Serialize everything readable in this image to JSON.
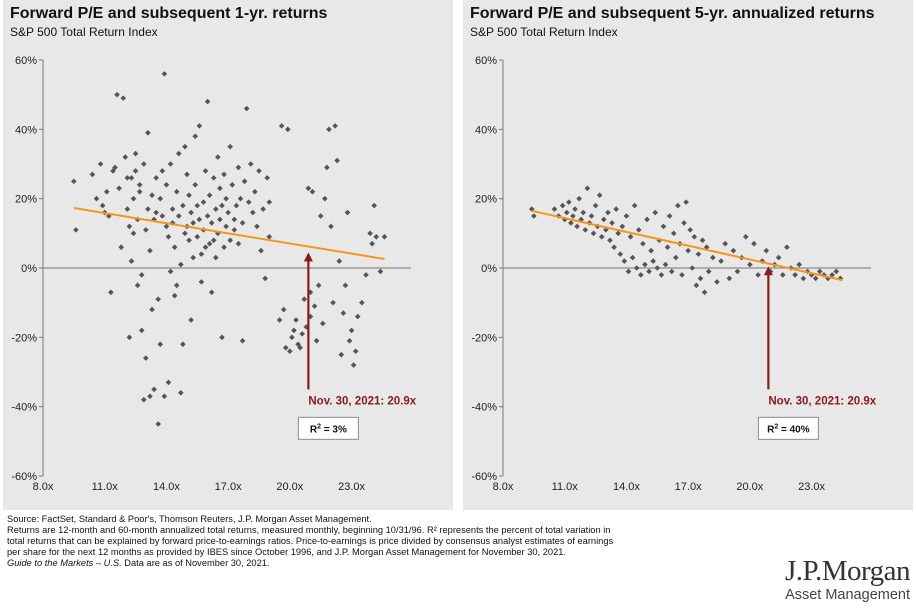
{
  "colors": {
    "panel_bg": "#e8e8e8",
    "points": "#555555",
    "trend": "#f7941d",
    "arrow": "#8b1a1a",
    "zero_line": "#8c8c8c"
  },
  "chart_data": [
    {
      "type": "scatter",
      "title": "Forward P/E and subsequent 1-yr. returns",
      "subtitle": "S&P 500 Total Return Index",
      "xlabel": "",
      "ylabel": "",
      "xlim": [
        8,
        25.5
      ],
      "ylim": [
        -60,
        60
      ],
      "xticks": [
        8,
        11,
        14,
        17,
        20,
        23
      ],
      "xtick_labels": [
        "8.0x",
        "11.0x",
        "14.0x",
        "17.0x",
        "20.0x",
        "23.0x"
      ],
      "yticks": [
        -60,
        -40,
        -20,
        0,
        20,
        40,
        60
      ],
      "ytick_labels": [
        "-60%",
        "-40%",
        "-20%",
        "0%",
        "20%",
        "40%",
        "60%"
      ],
      "grid": false,
      "trendline": {
        "x": [
          9.5,
          24.6
        ],
        "y": [
          17.3,
          2.6
        ]
      },
      "annotation": {
        "label": "Nov. 30, 2021: 20.9x",
        "x": 20.9,
        "y_from": -35,
        "y_to": 4.5
      },
      "r_squared_label": "R",
      "r_squared_sup": "2",
      "r_squared_value": " = 3%",
      "points": [
        [
          9.5,
          25
        ],
        [
          9.6,
          11
        ],
        [
          10.4,
          27
        ],
        [
          10.6,
          20
        ],
        [
          10.8,
          30
        ],
        [
          10.9,
          18
        ],
        [
          11.0,
          16
        ],
        [
          11.1,
          22
        ],
        [
          11.2,
          15
        ],
        [
          11.3,
          -7
        ],
        [
          11.4,
          28
        ],
        [
          11.5,
          29
        ],
        [
          11.6,
          50
        ],
        [
          11.7,
          23
        ],
        [
          11.8,
          6
        ],
        [
          11.9,
          49
        ],
        [
          12.0,
          32
        ],
        [
          12.1,
          17
        ],
        [
          12.1,
          26
        ],
        [
          12.2,
          12
        ],
        [
          12.2,
          -20
        ],
        [
          12.3,
          2
        ],
        [
          12.3,
          26
        ],
        [
          12.4,
          10
        ],
        [
          12.4,
          20
        ],
        [
          12.5,
          28
        ],
        [
          12.5,
          33
        ],
        [
          12.6,
          14
        ],
        [
          12.6,
          -5
        ],
        [
          12.7,
          24
        ],
        [
          12.7,
          22
        ],
        [
          12.8,
          -18
        ],
        [
          12.8,
          -2
        ],
        [
          12.9,
          30
        ],
        [
          12.9,
          -38
        ],
        [
          13.0,
          11
        ],
        [
          13.0,
          -26
        ],
        [
          13.1,
          17
        ],
        [
          13.1,
          39
        ],
        [
          13.2,
          -37
        ],
        [
          13.2,
          5
        ],
        [
          13.3,
          21
        ],
        [
          13.3,
          -12
        ],
        [
          13.4,
          14
        ],
        [
          13.4,
          -35
        ],
        [
          13.5,
          26
        ],
        [
          13.5,
          16
        ],
        [
          13.6,
          -9
        ],
        [
          13.6,
          -45
        ],
        [
          13.7,
          20
        ],
        [
          13.7,
          -22
        ],
        [
          13.8,
          15
        ],
        [
          13.8,
          28
        ],
        [
          13.9,
          56
        ],
        [
          13.9,
          -37
        ],
        [
          14.0,
          24
        ],
        [
          14.0,
          12
        ],
        [
          14.1,
          -33
        ],
        [
          14.1,
          9
        ],
        [
          14.2,
          30
        ],
        [
          14.2,
          -1
        ],
        [
          14.3,
          13
        ],
        [
          14.3,
          17
        ],
        [
          14.4,
          6
        ],
        [
          14.4,
          -8
        ],
        [
          14.5,
          22
        ],
        [
          14.5,
          -5
        ],
        [
          14.6,
          33
        ],
        [
          14.6,
          15
        ],
        [
          14.7,
          -36
        ],
        [
          14.7,
          1
        ],
        [
          14.8,
          18
        ],
        [
          14.8,
          -22
        ],
        [
          14.9,
          10
        ],
        [
          14.9,
          35
        ],
        [
          15.0,
          12
        ],
        [
          15.0,
          27
        ],
        [
          15.1,
          8
        ],
        [
          15.1,
          21
        ],
        [
          15.2,
          16
        ],
        [
          15.2,
          -15
        ],
        [
          15.3,
          3
        ],
        [
          15.3,
          13
        ],
        [
          15.4,
          24
        ],
        [
          15.4,
          38
        ],
        [
          15.5,
          9
        ],
        [
          15.5,
          18
        ],
        [
          15.6,
          41
        ],
        [
          15.6,
          14
        ],
        [
          15.7,
          4
        ],
        [
          15.7,
          -4
        ],
        [
          15.8,
          19
        ],
        [
          15.8,
          11
        ],
        [
          15.9,
          28
        ],
        [
          15.9,
          6
        ],
        [
          16.0,
          15
        ],
        [
          16.0,
          48
        ],
        [
          16.1,
          7
        ],
        [
          16.1,
          21
        ],
        [
          16.2,
          13
        ],
        [
          16.2,
          -7
        ],
        [
          16.3,
          26
        ],
        [
          16.3,
          8
        ],
        [
          16.4,
          17
        ],
        [
          16.4,
          3
        ],
        [
          16.5,
          32
        ],
        [
          16.5,
          10
        ],
        [
          16.6,
          14
        ],
        [
          16.6,
          23
        ],
        [
          16.7,
          18
        ],
        [
          16.7,
          -20
        ],
        [
          16.8,
          6
        ],
        [
          16.8,
          27
        ],
        [
          16.9,
          12
        ],
        [
          16.9,
          20
        ],
        [
          17.0,
          16
        ],
        [
          17.1,
          8
        ],
        [
          17.1,
          35
        ],
        [
          17.2,
          24
        ],
        [
          17.3,
          11
        ],
        [
          17.3,
          14
        ],
        [
          17.4,
          18
        ],
        [
          17.5,
          7
        ],
        [
          17.5,
          29
        ],
        [
          17.6,
          20
        ],
        [
          17.7,
          13
        ],
        [
          17.7,
          -21
        ],
        [
          17.8,
          25
        ],
        [
          17.9,
          46
        ],
        [
          18.0,
          19
        ],
        [
          18.1,
          30
        ],
        [
          18.2,
          16
        ],
        [
          18.3,
          22
        ],
        [
          18.4,
          12
        ],
        [
          18.5,
          28
        ],
        [
          18.6,
          5
        ],
        [
          18.7,
          17
        ],
        [
          18.8,
          -3
        ],
        [
          18.9,
          26
        ],
        [
          19.0,
          9
        ],
        [
          19.0,
          19
        ],
        [
          19.5,
          -15
        ],
        [
          19.6,
          41
        ],
        [
          19.7,
          -12
        ],
        [
          19.8,
          -23
        ],
        [
          19.9,
          40
        ],
        [
          20.0,
          -24
        ],
        [
          20.1,
          -20
        ],
        [
          20.2,
          -18
        ],
        [
          20.3,
          -15
        ],
        [
          20.4,
          -22
        ],
        [
          20.5,
          -23
        ],
        [
          20.6,
          -19
        ],
        [
          20.7,
          -9
        ],
        [
          20.8,
          -17
        ],
        [
          20.9,
          23
        ],
        [
          21.0,
          -14
        ],
        [
          21.0,
          -7
        ],
        [
          21.1,
          22
        ],
        [
          21.2,
          -11
        ],
        [
          21.3,
          -21
        ],
        [
          21.4,
          -5
        ],
        [
          21.5,
          15
        ],
        [
          21.6,
          -16
        ],
        [
          21.7,
          20
        ],
        [
          21.8,
          29
        ],
        [
          21.9,
          40
        ],
        [
          22.0,
          12
        ],
        [
          22.1,
          -10
        ],
        [
          22.2,
          41
        ],
        [
          22.3,
          31
        ],
        [
          22.4,
          2
        ],
        [
          22.5,
          -25
        ],
        [
          22.6,
          -13
        ],
        [
          22.7,
          -5
        ],
        [
          22.8,
          16
        ],
        [
          22.9,
          -21
        ],
        [
          23.0,
          -18
        ],
        [
          23.1,
          -28
        ],
        [
          23.2,
          -24
        ],
        [
          23.3,
          -14
        ],
        [
          23.5,
          -10
        ],
        [
          23.7,
          -2
        ],
        [
          23.9,
          10
        ],
        [
          24.0,
          7
        ],
        [
          24.1,
          18
        ],
        [
          24.2,
          9
        ],
        [
          24.4,
          -1
        ],
        [
          24.6,
          9
        ]
      ]
    },
    {
      "type": "scatter",
      "title": "Forward P/E and subsequent 5-yr. annualized returns",
      "subtitle": "S&P 500 Total Return Index",
      "xlabel": "",
      "ylabel": "",
      "xlim": [
        8,
        25.5
      ],
      "ylim": [
        -60,
        60
      ],
      "xticks": [
        8,
        11,
        14,
        17,
        20,
        23
      ],
      "xtick_labels": [
        "8.0x",
        "11.0x",
        "14.0x",
        "17.0x",
        "20.0x",
        "23.0x"
      ],
      "yticks": [
        -60,
        -40,
        -20,
        0,
        20,
        40,
        60
      ],
      "ytick_labels": [
        "-60%",
        "-40%",
        "-20%",
        "0%",
        "20%",
        "40%",
        "60%"
      ],
      "grid": false,
      "trendline": {
        "x": [
          9.4,
          24.5
        ],
        "y": [
          16.5,
          -3.5
        ]
      },
      "annotation": {
        "label": "Nov. 30, 2021: 20.9x",
        "x": 20.9,
        "y_from": -35,
        "y_to": 0.5
      },
      "r_squared_label": "R",
      "r_squared_sup": "2",
      "r_squared_value": " = 40%",
      "points": [
        [
          9.4,
          17
        ],
        [
          9.5,
          15
        ],
        [
          10.5,
          17
        ],
        [
          10.7,
          15
        ],
        [
          10.9,
          18
        ],
        [
          11.0,
          14
        ],
        [
          11.1,
          16
        ],
        [
          11.2,
          19
        ],
        [
          11.3,
          13
        ],
        [
          11.4,
          15
        ],
        [
          11.5,
          17
        ],
        [
          11.6,
          12
        ],
        [
          11.7,
          20
        ],
        [
          11.8,
          14
        ],
        [
          11.9,
          16
        ],
        [
          12.0,
          11
        ],
        [
          12.1,
          23
        ],
        [
          12.2,
          13
        ],
        [
          12.3,
          15
        ],
        [
          12.4,
          10
        ],
        [
          12.5,
          18
        ],
        [
          12.6,
          12
        ],
        [
          12.7,
          21
        ],
        [
          12.8,
          9
        ],
        [
          12.9,
          14
        ],
        [
          13.0,
          11
        ],
        [
          13.1,
          16
        ],
        [
          13.2,
          8
        ],
        [
          13.3,
          13
        ],
        [
          13.4,
          6
        ],
        [
          13.5,
          17
        ],
        [
          13.6,
          10
        ],
        [
          13.7,
          4
        ],
        [
          13.8,
          12
        ],
        [
          13.9,
          2
        ],
        [
          14.0,
          15
        ],
        [
          14.1,
          -1
        ],
        [
          14.2,
          9
        ],
        [
          14.3,
          3
        ],
        [
          14.4,
          18
        ],
        [
          14.5,
          0
        ],
        [
          14.6,
          11
        ],
        [
          14.7,
          -2
        ],
        [
          14.8,
          7
        ],
        [
          14.9,
          1
        ],
        [
          15.0,
          14
        ],
        [
          15.1,
          -1
        ],
        [
          15.2,
          5
        ],
        [
          15.3,
          2
        ],
        [
          15.4,
          16
        ],
        [
          15.5,
          0
        ],
        [
          15.6,
          8
        ],
        [
          15.7,
          -2
        ],
        [
          15.8,
          12
        ],
        [
          15.9,
          1
        ],
        [
          16.0,
          6
        ],
        [
          16.1,
          15
        ],
        [
          16.2,
          -1
        ],
        [
          16.3,
          10
        ],
        [
          16.4,
          3
        ],
        [
          16.5,
          18
        ],
        [
          16.6,
          7
        ],
        [
          16.7,
          -2
        ],
        [
          16.8,
          13
        ],
        [
          16.9,
          19
        ],
        [
          17.0,
          5
        ],
        [
          17.1,
          11
        ],
        [
          17.2,
          0
        ],
        [
          17.3,
          9
        ],
        [
          17.4,
          -5
        ],
        [
          17.5,
          4
        ],
        [
          17.6,
          -3
        ],
        [
          17.7,
          8
        ],
        [
          17.8,
          -7
        ],
        [
          17.9,
          6
        ],
        [
          18.0,
          -1
        ],
        [
          18.2,
          3
        ],
        [
          18.4,
          -4
        ],
        [
          18.6,
          2
        ],
        [
          18.8,
          7
        ],
        [
          19.0,
          -3
        ],
        [
          19.2,
          5
        ],
        [
          19.4,
          -1
        ],
        [
          19.6,
          3
        ],
        [
          19.8,
          9
        ],
        [
          20.0,
          1
        ],
        [
          20.2,
          7
        ],
        [
          20.4,
          -2
        ],
        [
          20.6,
          2
        ],
        [
          20.8,
          5
        ],
        [
          21.0,
          -1
        ],
        [
          21.2,
          1
        ],
        [
          21.4,
          3
        ],
        [
          21.6,
          -2
        ],
        [
          21.8,
          6
        ],
        [
          22.0,
          0
        ],
        [
          22.2,
          -2
        ],
        [
          22.4,
          1
        ],
        [
          22.6,
          -3
        ],
        [
          22.8,
          -1
        ],
        [
          23.0,
          -2
        ],
        [
          23.2,
          -3
        ],
        [
          23.4,
          -1
        ],
        [
          23.6,
          -2
        ],
        [
          23.8,
          -3
        ],
        [
          24.0,
          -2
        ],
        [
          24.2,
          -1
        ],
        [
          24.4,
          -3
        ]
      ]
    }
  ],
  "footer": {
    "line1": "Source: FactSet, Standard & Poor's, Thomson Reuters, J.P. Morgan Asset Management.",
    "line2": "Returns are 12-month and 60-month annualized total returns, measured monthly, beginning 10/31/96. R² represents the percent of total variation in",
    "line3": "total returns that can be explained by forward price-to-earnings ratios. Price-to-earnings is price divided by consensus analyst estimates of earnings",
    "line4": "per share for the next 12 months as provided by IBES since October 1996, and J.P. Morgan Asset Management for November 30, 2021.",
    "guide_title": "Guide to the Markets – U.S.",
    "guide_date": " Data are as of November 30, 2021."
  },
  "logo": {
    "name": "J.P.Morgan",
    "sub": "Asset Management"
  }
}
